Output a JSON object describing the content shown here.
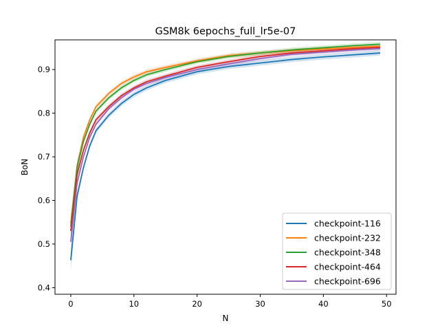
{
  "chart_data": {
    "type": "line",
    "title": "GSM8k 6epochs_full_lr5e-07",
    "xlabel": "N",
    "ylabel": "BoN",
    "xlim": [
      -2.5,
      51.5
    ],
    "ylim": [
      0.385,
      0.968
    ],
    "xticks": [
      "0",
      "10",
      "20",
      "30",
      "40",
      "50"
    ],
    "yticks": [
      "0.4",
      "0.5",
      "0.6",
      "0.7",
      "0.8",
      "0.9"
    ],
    "grid": false,
    "legend_position": "lower right",
    "series": [
      {
        "name": "checkpoint-116",
        "color": "#1f77b4",
        "band": 0.012,
        "anchors": [
          [
            0,
            0.463
          ],
          [
            1,
            0.61
          ],
          [
            2,
            0.675
          ],
          [
            3,
            0.725
          ],
          [
            4,
            0.76
          ],
          [
            6,
            0.795
          ],
          [
            8,
            0.822
          ],
          [
            10,
            0.843
          ],
          [
            12,
            0.858
          ],
          [
            15,
            0.875
          ],
          [
            20,
            0.895
          ],
          [
            25,
            0.907
          ],
          [
            30,
            0.915
          ],
          [
            35,
            0.923
          ],
          [
            40,
            0.929
          ],
          [
            45,
            0.934
          ],
          [
            49,
            0.938
          ]
        ]
      },
      {
        "name": "checkpoint-232",
        "color": "#ff7f0e",
        "band": 0.01,
        "anchors": [
          [
            0,
            0.548
          ],
          [
            1,
            0.68
          ],
          [
            2,
            0.745
          ],
          [
            3,
            0.785
          ],
          [
            4,
            0.815
          ],
          [
            6,
            0.845
          ],
          [
            8,
            0.868
          ],
          [
            10,
            0.883
          ],
          [
            12,
            0.895
          ],
          [
            15,
            0.905
          ],
          [
            20,
            0.92
          ],
          [
            25,
            0.932
          ],
          [
            30,
            0.938
          ],
          [
            35,
            0.943
          ],
          [
            40,
            0.947
          ],
          [
            45,
            0.951
          ],
          [
            49,
            0.953
          ]
        ]
      },
      {
        "name": "checkpoint-348",
        "color": "#2ca02c",
        "band": 0.01,
        "anchors": [
          [
            0,
            0.54
          ],
          [
            1,
            0.675
          ],
          [
            2,
            0.735
          ],
          [
            3,
            0.775
          ],
          [
            4,
            0.805
          ],
          [
            6,
            0.835
          ],
          [
            8,
            0.858
          ],
          [
            10,
            0.875
          ],
          [
            12,
            0.888
          ],
          [
            15,
            0.9
          ],
          [
            20,
            0.918
          ],
          [
            25,
            0.93
          ],
          [
            30,
            0.938
          ],
          [
            35,
            0.945
          ],
          [
            40,
            0.95
          ],
          [
            45,
            0.955
          ],
          [
            49,
            0.958
          ]
        ]
      },
      {
        "name": "checkpoint-464",
        "color": "#d62728",
        "band": 0.01,
        "anchors": [
          [
            0,
            0.53
          ],
          [
            1,
            0.66
          ],
          [
            2,
            0.715
          ],
          [
            3,
            0.755
          ],
          [
            4,
            0.785
          ],
          [
            6,
            0.815
          ],
          [
            8,
            0.84
          ],
          [
            10,
            0.858
          ],
          [
            12,
            0.872
          ],
          [
            15,
            0.885
          ],
          [
            20,
            0.905
          ],
          [
            25,
            0.918
          ],
          [
            30,
            0.93
          ],
          [
            35,
            0.938
          ],
          [
            40,
            0.943
          ],
          [
            45,
            0.948
          ],
          [
            49,
            0.951
          ]
        ]
      },
      {
        "name": "checkpoint-696",
        "color": "#9467bd",
        "band": 0.01,
        "anchors": [
          [
            0,
            0.505
          ],
          [
            1,
            0.64
          ],
          [
            2,
            0.7
          ],
          [
            3,
            0.745
          ],
          [
            4,
            0.775
          ],
          [
            6,
            0.81
          ],
          [
            8,
            0.835
          ],
          [
            10,
            0.855
          ],
          [
            12,
            0.868
          ],
          [
            15,
            0.882
          ],
          [
            20,
            0.9
          ],
          [
            25,
            0.913
          ],
          [
            30,
            0.925
          ],
          [
            35,
            0.935
          ],
          [
            40,
            0.94
          ],
          [
            45,
            0.945
          ],
          [
            49,
            0.948
          ]
        ]
      }
    ]
  }
}
